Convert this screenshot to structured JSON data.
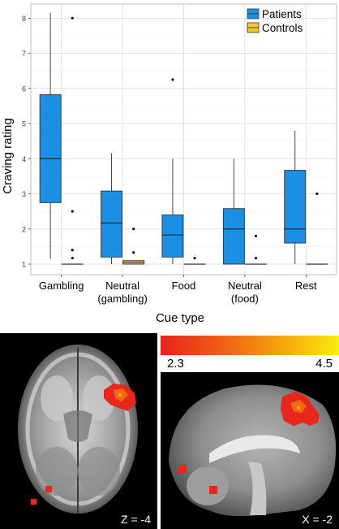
{
  "chart_data": {
    "type": "box",
    "ylabel": "Craving rating",
    "xlabel": "Cue type",
    "ylim": [
      0.7,
      8.4
    ],
    "yticks": [
      1,
      2,
      3,
      4,
      5,
      6,
      7,
      8
    ],
    "grid": true,
    "legend_position": "top-right",
    "categories": [
      "Gambling",
      "Neutral\n(gambling)",
      "Food",
      "Neutral\n(food)",
      "Rest"
    ],
    "series": [
      {
        "name": "Patients",
        "color": "#1a8fe3",
        "boxes": [
          {
            "min": 1.15,
            "q1": 2.75,
            "median": 4.0,
            "q3": 5.82,
            "max": 8.15,
            "outliers": []
          },
          {
            "min": 1.0,
            "q1": 1.2,
            "median": 2.17,
            "q3": 3.08,
            "max": 4.15,
            "outliers": []
          },
          {
            "min": 1.0,
            "q1": 1.2,
            "median": 1.83,
            "q3": 2.4,
            "max": 4.0,
            "outliers": [
              6.25
            ]
          },
          {
            "min": 1.0,
            "q1": 1.0,
            "median": 2.0,
            "q3": 2.58,
            "max": 4.0,
            "outliers": []
          },
          {
            "min": 1.0,
            "q1": 1.6,
            "median": 2.0,
            "q3": 3.67,
            "max": 4.8,
            "outliers": []
          }
        ]
      },
      {
        "name": "Controls",
        "color": "#f2c72e",
        "boxes": [
          {
            "min": 1.0,
            "q1": 1.0,
            "median": 1.0,
            "q3": 1.0,
            "max": 1.0,
            "outliers": [
              8.0,
              2.5,
              1.4,
              1.17
            ]
          },
          {
            "min": 1.0,
            "q1": 1.0,
            "median": 1.05,
            "q3": 1.1,
            "max": 1.1,
            "outliers": [
              2.0,
              1.33
            ]
          },
          {
            "min": 1.0,
            "q1": 1.0,
            "median": 1.0,
            "q3": 1.0,
            "max": 1.0,
            "outliers": [
              1.17
            ]
          },
          {
            "min": 1.0,
            "q1": 1.0,
            "median": 1.0,
            "q3": 1.0,
            "max": 1.0,
            "outliers": [
              1.8,
              1.17
            ]
          },
          {
            "min": 1.0,
            "q1": 1.0,
            "median": 1.0,
            "q3": 1.0,
            "max": 1.0,
            "outliers": [
              3.0
            ]
          }
        ]
      }
    ]
  },
  "colorbar": {
    "min_label": "2.3",
    "max_label": "4.5"
  },
  "brain_axial": {
    "coord_label": "Z = -4"
  },
  "brain_sagittal": {
    "coord_label": "X = -2"
  }
}
